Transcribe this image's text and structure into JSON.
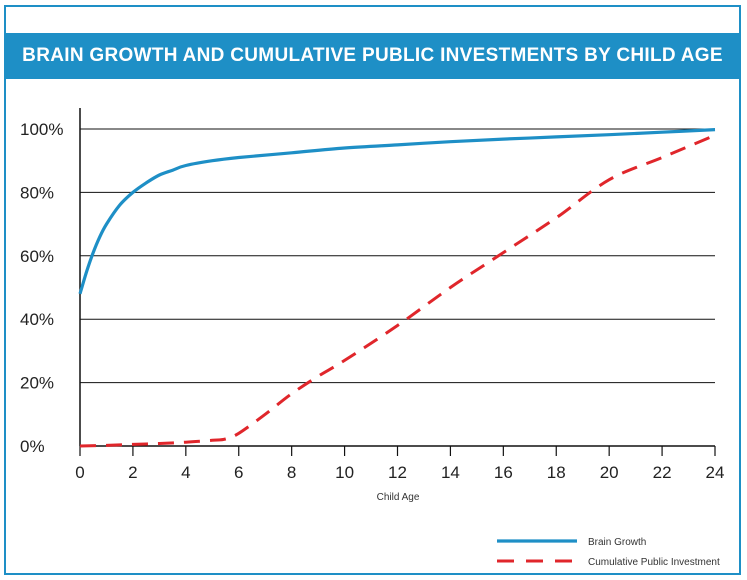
{
  "chart_data": {
    "type": "line",
    "title": "BRAIN GROWTH AND CUMULATIVE PUBLIC INVESTMENTS BY CHILD AGE",
    "xlabel": "Child Age",
    "ylabel": "",
    "xlim": [
      0,
      24
    ],
    "ylim": [
      0,
      100
    ],
    "x_ticks": [
      "0",
      "2",
      "4",
      "6",
      "8",
      "10",
      "12",
      "14",
      "16",
      "18",
      "20",
      "22",
      "24"
    ],
    "y_ticks": [
      "0%",
      "20%",
      "40%",
      "60%",
      "80%",
      "100%"
    ],
    "grid": "horizontal",
    "legend_position": "bottom-right",
    "series": [
      {
        "name": "Brain Growth",
        "color": "#1e8fc6",
        "style": "solid",
        "x": [
          0,
          0.25,
          0.5,
          0.75,
          1,
          1.5,
          2,
          2.5,
          3,
          3.5,
          4,
          5,
          6,
          8,
          10,
          12,
          14,
          16,
          18,
          20,
          22,
          24
        ],
        "y": [
          48,
          55,
          61,
          66,
          70,
          76,
          80,
          83,
          85.5,
          87,
          88.5,
          90,
          91,
          92.5,
          94,
          95,
          96,
          96.8,
          97.5,
          98.2,
          99,
          99.8
        ]
      },
      {
        "name": "Cumulative Public Investment",
        "color": "#e0262b",
        "style": "dashed",
        "x": [
          0,
          1,
          2,
          3,
          4,
          5,
          5.5,
          6,
          7,
          8,
          9,
          10,
          12,
          14,
          16,
          18,
          20,
          22,
          24
        ],
        "y": [
          0,
          0.2,
          0.5,
          0.8,
          1.2,
          1.8,
          2.2,
          4,
          10,
          16.5,
          22,
          27,
          38,
          50,
          61,
          72,
          84,
          91,
          98
        ]
      }
    ]
  }
}
